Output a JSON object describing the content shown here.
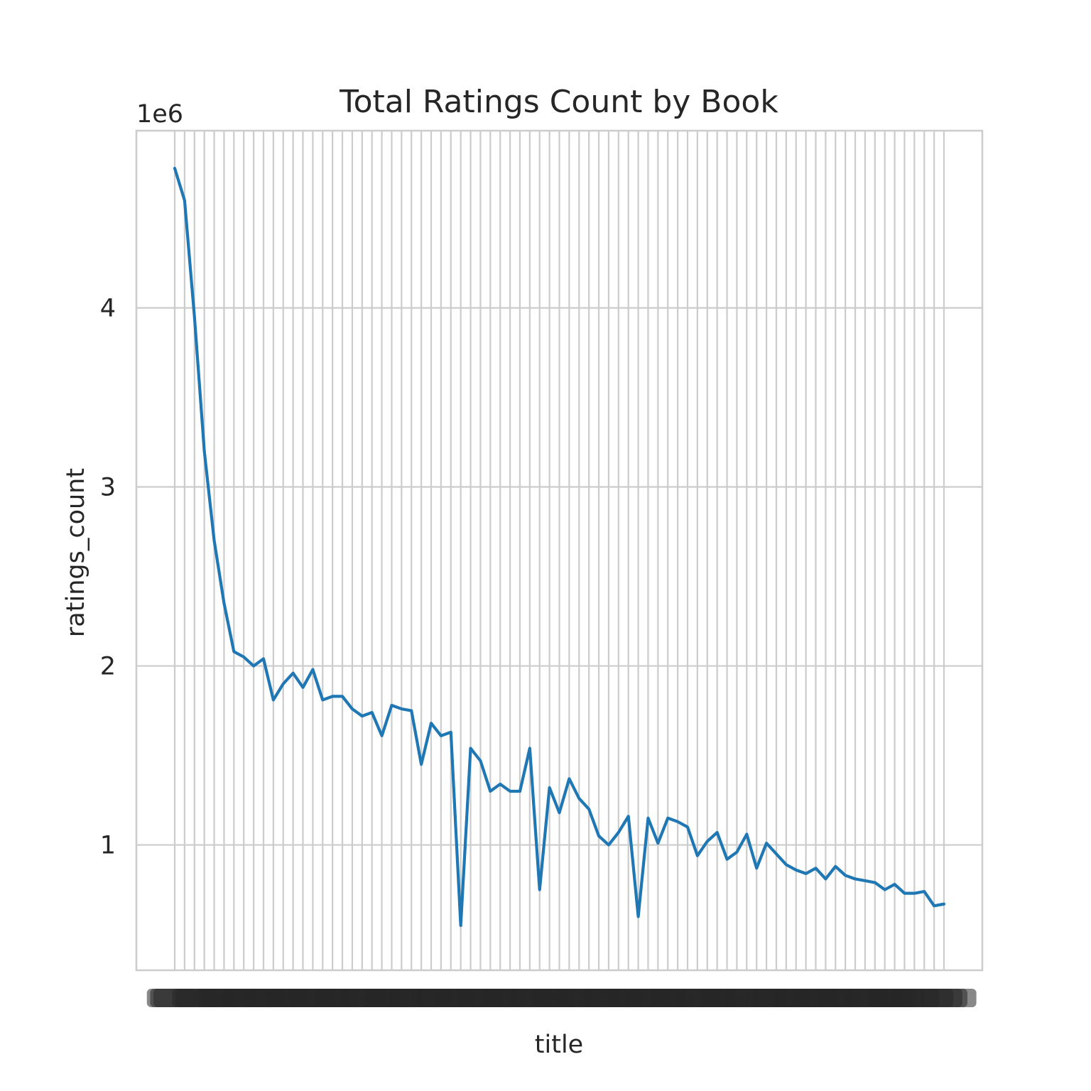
{
  "chart_data": {
    "type": "line",
    "title": "Total Ratings Count by Book",
    "xlabel": "title",
    "ylabel": "ratings_count",
    "y_offset_label": "1e6",
    "y_ticks": [
      1,
      2,
      3,
      4
    ],
    "ylim": [
      0.3,
      4.99
    ],
    "grid": true,
    "line_color": "#1f77b4",
    "grid_color": "#cccccc",
    "x_tick_labels_note": "tick labels are overlapping, illegible book titles",
    "series": [
      {
        "values": [
          4.78,
          4.6,
          3.95,
          3.2,
          2.7,
          2.35,
          2.08,
          2.05,
          2.0,
          2.04,
          1.81,
          1.9,
          1.96,
          1.88,
          1.98,
          1.81,
          1.83,
          1.83,
          1.76,
          1.72,
          1.74,
          1.61,
          1.78,
          1.76,
          1.75,
          1.45,
          1.68,
          1.61,
          1.63,
          0.55,
          1.54,
          1.47,
          1.3,
          1.34,
          1.3,
          1.3,
          1.54,
          0.75,
          1.32,
          1.18,
          1.37,
          1.26,
          1.2,
          1.05,
          1.0,
          1.07,
          1.16,
          0.6,
          1.15,
          1.01,
          1.15,
          1.13,
          1.1,
          0.94,
          1.02,
          1.07,
          0.92,
          0.96,
          1.06,
          0.87,
          1.01,
          0.95,
          0.89,
          0.86,
          0.84,
          0.87,
          0.81,
          0.88,
          0.83,
          0.81,
          0.8,
          0.79,
          0.75,
          0.78,
          0.73,
          0.73,
          0.74,
          0.66,
          0.67
        ]
      }
    ]
  }
}
